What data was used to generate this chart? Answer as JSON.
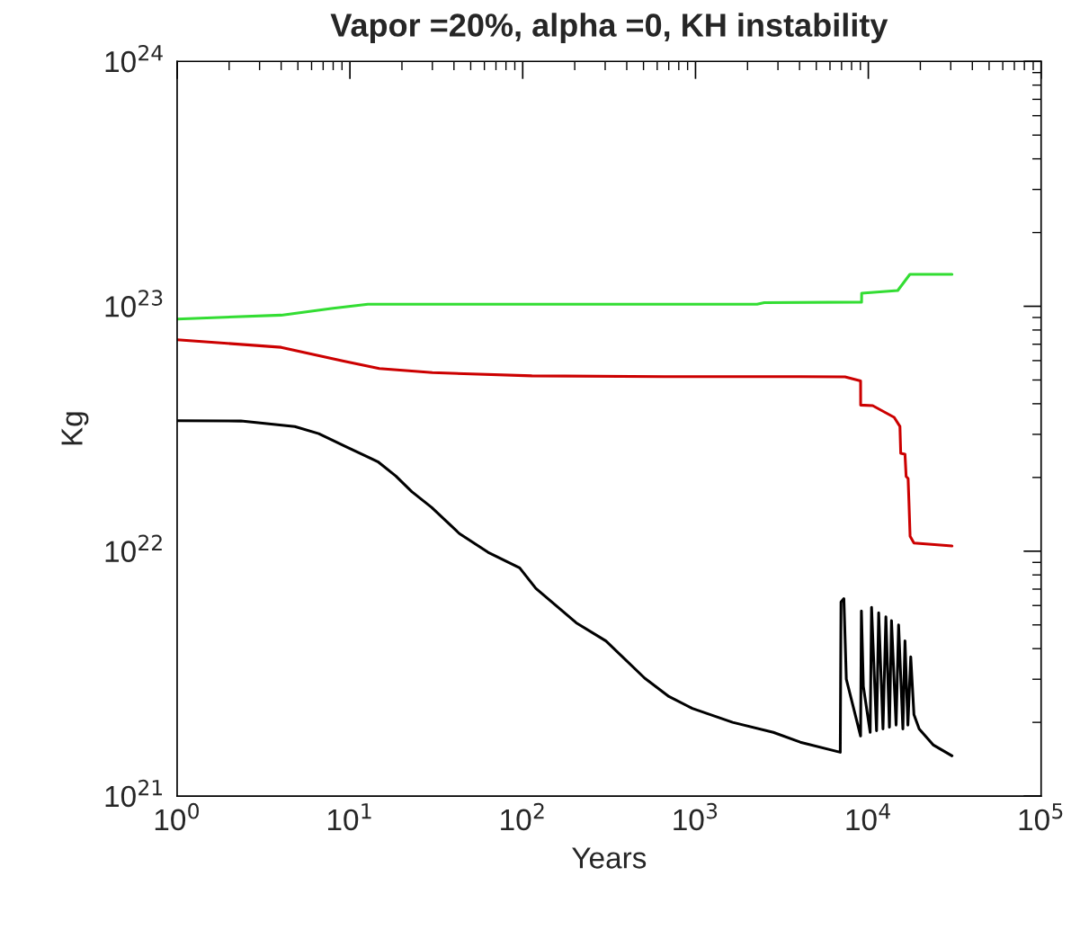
{
  "chart_data": {
    "type": "line",
    "title": "Vapor =20%, alpha =0, KH instability",
    "xlabel": "Years",
    "ylabel": "Kg",
    "log": "xy",
    "grid": false,
    "legend": false,
    "marker": "none",
    "line_style": "solid",
    "xlim": [
      1,
      100000
    ],
    "ylim": [
      1e+21,
      1e+24
    ],
    "xticks": [
      {
        "value": 1,
        "label": "10$^{0}$"
      },
      {
        "value": 10,
        "label": "10$^{1}$"
      },
      {
        "value": 100,
        "label": "10$^{2}$"
      },
      {
        "value": 1000,
        "label": "10$^{3}$"
      },
      {
        "value": 10000,
        "label": "10$^{4}$"
      },
      {
        "value": 100000,
        "label": "10$^{5}$"
      }
    ],
    "yticks": [
      {
        "value": 1e+21,
        "label": "10$^{21}$"
      },
      {
        "value": 1e+22,
        "label": "10$^{22}$"
      },
      {
        "value": 1e+23,
        "label": "10$^{23}$"
      },
      {
        "value": 1e+24,
        "label": "10$^{24}$"
      }
    ],
    "series": [
      {
        "color": "#33dd33",
        "x": [
          1,
          4,
          7.8,
          12.7,
          2270,
          2500,
          9140,
          9150,
          14800,
          17400,
          30500
        ],
        "values": [
          8.87e+22,
          9.2e+22,
          9.8e+22,
          1.02e+23,
          1.02e+23,
          1.035e+23,
          1.04e+23,
          1.13e+23,
          1.16e+23,
          1.35e+23,
          1.35e+23
        ]
      },
      {
        "color": "#cc0000",
        "x": [
          1,
          4,
          9.2,
          14.8,
          30,
          113,
          660,
          4040,
          7330,
          9020,
          9030,
          10600,
          14110,
          15240,
          15400,
          16300,
          16550,
          16990,
          17180,
          17450,
          18370,
          30500
        ],
        "values": [
          7.3e+22,
          6.8e+22,
          5.97e+22,
          5.57e+22,
          5.36e+22,
          5.2e+22,
          5.16e+22,
          5.16e+22,
          5.15e+22,
          4.96e+22,
          3.95e+22,
          3.93e+22,
          3.52e+22,
          3.23e+22,
          2.51e+22,
          2.49e+22,
          2.02e+22,
          1.98e+22,
          1.6e+22,
          1.15e+22,
          1.08e+22,
          1.05e+22
        ]
      },
      {
        "color": "#000000",
        "x": [
          1,
          2.34,
          4.8,
          6.6,
          9.6,
          14.5,
          18.4,
          22.8,
          29.7,
          43,
          63,
          96,
          119,
          204,
          303,
          508,
          702,
          958,
          1640,
          2820,
          4040,
          6880,
          6950,
          7220,
          7460,
          9020,
          9120,
          9360,
          10250,
          10440,
          11160,
          11480,
          12160,
          12640,
          13250,
          13620,
          14480,
          14970,
          15850,
          16300,
          16940,
          17600,
          18370,
          19700,
          23700,
          30500
        ],
        "values": [
          3.41e+22,
          3.4e+22,
          3.23e+22,
          3.02e+22,
          2.66e+22,
          2.32e+22,
          2.03e+22,
          1.75e+22,
          1.51e+22,
          1.18e+22,
          9.9e+21,
          8.55e+21,
          7.05e+21,
          5.1e+21,
          4.3e+21,
          3.03e+21,
          2.55e+21,
          2.28e+21,
          2e+21,
          1.82e+21,
          1.66e+21,
          1.51e+21,
          6.2e+21,
          6.4e+21,
          3e+21,
          1.76e+21,
          5.7e+21,
          2.8e+21,
          1.82e+21,
          5.9e+21,
          1.85e+21,
          5.6e+21,
          1.88e+21,
          5.4e+21,
          1.91e+21,
          5.2e+21,
          1.95e+21,
          5e+21,
          1.88e+21,
          4.3e+21,
          1.95e+21,
          3.7e+21,
          2.15e+21,
          1.88e+21,
          1.62e+21,
          1.46e+21
        ]
      }
    ]
  }
}
